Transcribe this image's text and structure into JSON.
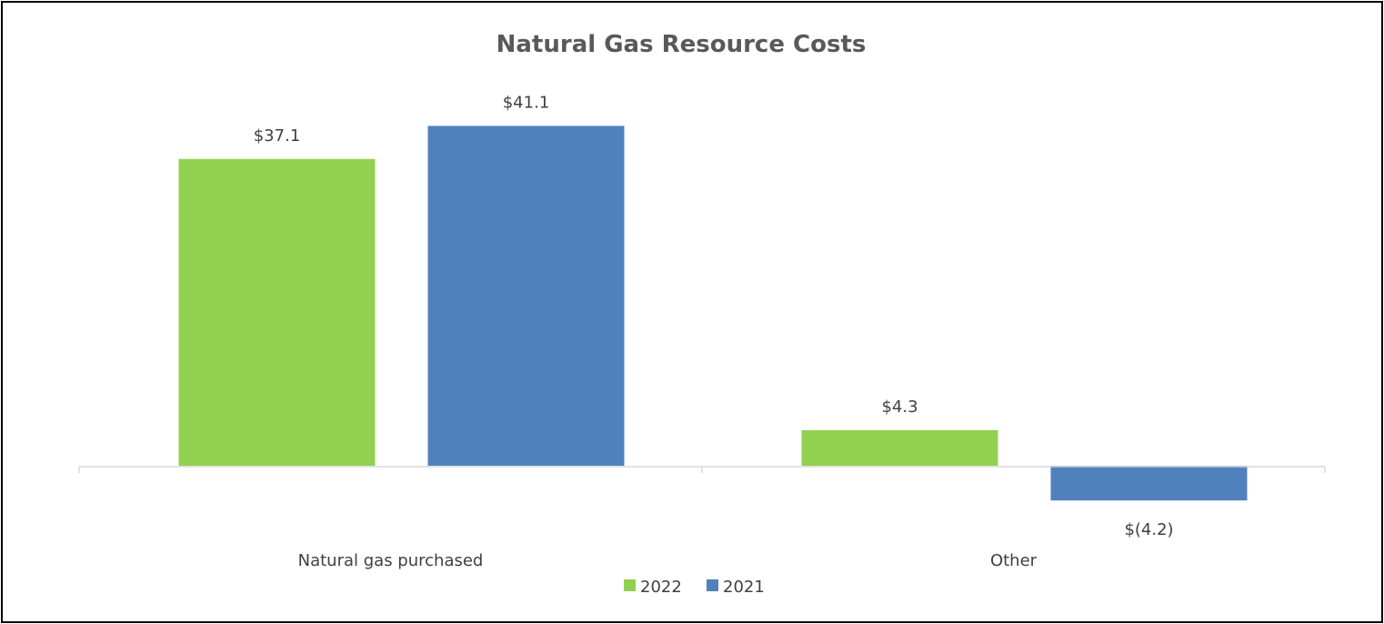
{
  "chart_data": {
    "type": "bar",
    "title": "Natural Gas Resource Costs",
    "categories": [
      "Natural gas purchased",
      "Other"
    ],
    "series": [
      {
        "name": "2022",
        "values": [
          37.1,
          4.3
        ],
        "labels": [
          "$37.1",
          "$4.3"
        ],
        "color": "#92d050"
      },
      {
        "name": "2021",
        "values": [
          41.1,
          -4.2
        ],
        "labels": [
          "$41.1",
          "$(4.2)"
        ],
        "color": "#4f81bd"
      }
    ],
    "xlabel": "",
    "ylabel": "",
    "ylim": [
      -5,
      45
    ],
    "grid": false,
    "legend": "bottom",
    "axis_color": "#d9d9d9"
  }
}
